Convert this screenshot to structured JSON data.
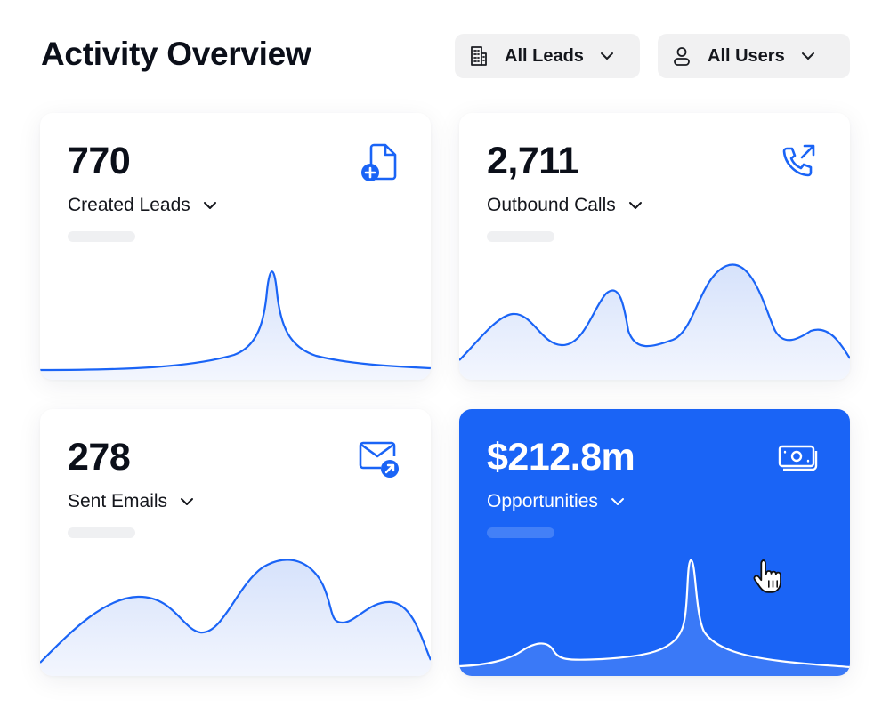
{
  "header": {
    "title": "Activity Overview",
    "filters": [
      {
        "label": "All Leads",
        "icon": "building-icon"
      },
      {
        "label": "All Users",
        "icon": "user-icon"
      }
    ]
  },
  "cards": {
    "leads": {
      "value": "770",
      "label": "Created Leads",
      "icon": "file-plus-icon"
    },
    "calls": {
      "value": "2,711",
      "label": "Outbound Calls",
      "icon": "phone-outgoing-icon"
    },
    "emails": {
      "value": "278",
      "label": "Sent Emails",
      "icon": "mail-send-icon"
    },
    "opportunities": {
      "value": "$212.8m",
      "label": "Opportunities",
      "icon": "banknote-icon"
    }
  },
  "colors": {
    "accent": "#1a64f6",
    "card_selected_background": "#1a64f6",
    "chart_fill": "#dbe6fb",
    "text_primary": "#0b0f19"
  }
}
